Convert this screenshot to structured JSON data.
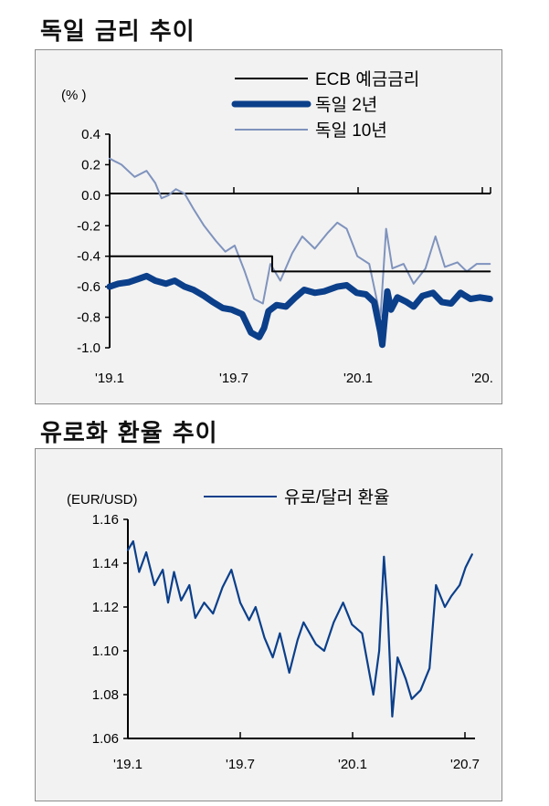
{
  "titles": {
    "bund_title": "독일 금리 추이",
    "fx_title": "유로화 환율 추이"
  },
  "chart_data": [
    {
      "type": "line",
      "title": "독일 금리 추이",
      "ylabel": "(% )",
      "ylim": [
        -1.0,
        0.4
      ],
      "yticks": [
        "0.4",
        "0.2",
        "0.0",
        "-0.2",
        "-0.4",
        "-0.6",
        "-0.8",
        "-1.0"
      ],
      "xticks": [
        "'19.1",
        "'19.7",
        "'20.1",
        "'20."
      ],
      "x_range": [
        "2019-01-01",
        "2020-09-01"
      ],
      "grid": false,
      "legend_position": "top-right",
      "series": [
        {
          "name": "ECB 예금금리",
          "color": "#000000",
          "style": "step",
          "points": [
            [
              "2019-01-01",
              -0.4
            ],
            [
              "2019-09-18",
              -0.4
            ],
            [
              "2019-09-18",
              -0.5
            ],
            [
              "2020-08-31",
              -0.5
            ]
          ]
        },
        {
          "name": "독일 2년",
          "color": "#0b3f8a",
          "style": "thick",
          "points": [
            [
              "2019-01-01",
              -0.6
            ],
            [
              "2019-01-15",
              -0.58
            ],
            [
              "2019-02-01",
              -0.57
            ],
            [
              "2019-02-15",
              -0.55
            ],
            [
              "2019-03-01",
              -0.53
            ],
            [
              "2019-03-15",
              -0.56
            ],
            [
              "2019-04-01",
              -0.58
            ],
            [
              "2019-04-15",
              -0.56
            ],
            [
              "2019-05-01",
              -0.6
            ],
            [
              "2019-05-15",
              -0.62
            ],
            [
              "2019-06-01",
              -0.66
            ],
            [
              "2019-06-15",
              -0.7
            ],
            [
              "2019-07-01",
              -0.74
            ],
            [
              "2019-07-15",
              -0.75
            ],
            [
              "2019-08-01",
              -0.78
            ],
            [
              "2019-08-15",
              -0.9
            ],
            [
              "2019-08-28",
              -0.93
            ],
            [
              "2019-09-05",
              -0.87
            ],
            [
              "2019-09-12",
              -0.76
            ],
            [
              "2019-09-25",
              -0.72
            ],
            [
              "2019-10-10",
              -0.73
            ],
            [
              "2019-10-25",
              -0.67
            ],
            [
              "2019-11-08",
              -0.62
            ],
            [
              "2019-11-25",
              -0.64
            ],
            [
              "2019-12-10",
              -0.63
            ],
            [
              "2019-12-31",
              -0.6
            ],
            [
              "2020-01-15",
              -0.59
            ],
            [
              "2020-01-31",
              -0.64
            ],
            [
              "2020-02-15",
              -0.65
            ],
            [
              "2020-02-28",
              -0.7
            ],
            [
              "2020-03-09",
              -0.9
            ],
            [
              "2020-03-12",
              -0.98
            ],
            [
              "2020-03-16",
              -0.8
            ],
            [
              "2020-03-20",
              -0.63
            ],
            [
              "2020-03-26",
              -0.75
            ],
            [
              "2020-04-05",
              -0.67
            ],
            [
              "2020-04-20",
              -0.7
            ],
            [
              "2020-05-01",
              -0.73
            ],
            [
              "2020-05-15",
              -0.66
            ],
            [
              "2020-06-01",
              -0.64
            ],
            [
              "2020-06-15",
              -0.7
            ],
            [
              "2020-06-30",
              -0.71
            ],
            [
              "2020-07-15",
              -0.64
            ],
            [
              "2020-07-31",
              -0.68
            ],
            [
              "2020-08-15",
              -0.67
            ],
            [
              "2020-08-31",
              -0.68
            ]
          ]
        },
        {
          "name": "독일 10년",
          "color": "#7f93bd",
          "style": "thin",
          "points": [
            [
              "2019-01-01",
              0.24
            ],
            [
              "2019-01-20",
              0.2
            ],
            [
              "2019-02-10",
              0.12
            ],
            [
              "2019-03-01",
              0.16
            ],
            [
              "2019-03-15",
              0.08
            ],
            [
              "2019-03-25",
              -0.02
            ],
            [
              "2019-04-05",
              0.0
            ],
            [
              "2019-04-17",
              0.04
            ],
            [
              "2019-05-01",
              0.01
            ],
            [
              "2019-05-15",
              -0.09
            ],
            [
              "2019-06-01",
              -0.2
            ],
            [
              "2019-06-20",
              -0.3
            ],
            [
              "2019-07-05",
              -0.37
            ],
            [
              "2019-07-20",
              -0.33
            ],
            [
              "2019-08-05",
              -0.5
            ],
            [
              "2019-08-20",
              -0.68
            ],
            [
              "2019-09-03",
              -0.71
            ],
            [
              "2019-09-15",
              -0.45
            ],
            [
              "2019-10-01",
              -0.56
            ],
            [
              "2019-10-20",
              -0.38
            ],
            [
              "2019-11-05",
              -0.27
            ],
            [
              "2019-11-25",
              -0.35
            ],
            [
              "2019-12-15",
              -0.25
            ],
            [
              "2019-12-31",
              -0.18
            ],
            [
              "2020-01-15",
              -0.22
            ],
            [
              "2020-02-01",
              -0.4
            ],
            [
              "2020-02-20",
              -0.45
            ],
            [
              "2020-03-09",
              -0.8
            ],
            [
              "2020-03-18",
              -0.22
            ],
            [
              "2020-03-28",
              -0.48
            ],
            [
              "2020-04-15",
              -0.45
            ],
            [
              "2020-05-01",
              -0.58
            ],
            [
              "2020-05-20",
              -0.48
            ],
            [
              "2020-06-05",
              -0.27
            ],
            [
              "2020-06-20",
              -0.47
            ],
            [
              "2020-07-10",
              -0.44
            ],
            [
              "2020-07-25",
              -0.5
            ],
            [
              "2020-08-10",
              -0.45
            ],
            [
              "2020-08-31",
              -0.45
            ]
          ]
        }
      ]
    },
    {
      "type": "line",
      "title": "유로화 환율 추이",
      "ylabel": "(EUR/USD)",
      "ylim": [
        1.06,
        1.16
      ],
      "yticks": [
        "1.16",
        "1.14",
        "1.12",
        "1.10",
        "1.08",
        "1.06"
      ],
      "xticks": [
        "'19.1",
        "'19.7",
        "'20.1",
        "'20.7"
      ],
      "x_range": [
        "2019-01-01",
        "2020-08-10"
      ],
      "grid": false,
      "legend_position": "top-right",
      "series": [
        {
          "name": "유로/달러 환율",
          "color": "#0b3f8a",
          "points": [
            [
              "2019-01-01",
              1.146
            ],
            [
              "2019-01-10",
              1.15
            ],
            [
              "2019-01-20",
              1.136
            ],
            [
              "2019-02-01",
              1.145
            ],
            [
              "2019-02-15",
              1.13
            ],
            [
              "2019-03-01",
              1.137
            ],
            [
              "2019-03-10",
              1.122
            ],
            [
              "2019-03-20",
              1.136
            ],
            [
              "2019-04-01",
              1.123
            ],
            [
              "2019-04-15",
              1.13
            ],
            [
              "2019-04-25",
              1.115
            ],
            [
              "2019-05-10",
              1.122
            ],
            [
              "2019-05-25",
              1.117
            ],
            [
              "2019-06-10",
              1.129
            ],
            [
              "2019-06-25",
              1.137
            ],
            [
              "2019-07-10",
              1.122
            ],
            [
              "2019-07-25",
              1.114
            ],
            [
              "2019-08-05",
              1.12
            ],
            [
              "2019-08-20",
              1.106
            ],
            [
              "2019-09-03",
              1.097
            ],
            [
              "2019-09-15",
              1.108
            ],
            [
              "2019-10-01",
              1.09
            ],
            [
              "2019-10-15",
              1.105
            ],
            [
              "2019-10-25",
              1.113
            ],
            [
              "2019-11-15",
              1.103
            ],
            [
              "2019-11-29",
              1.1
            ],
            [
              "2019-12-15",
              1.113
            ],
            [
              "2019-12-31",
              1.122
            ],
            [
              "2020-01-15",
              1.112
            ],
            [
              "2020-02-01",
              1.108
            ],
            [
              "2020-02-20",
              1.08
            ],
            [
              "2020-03-01",
              1.1
            ],
            [
              "2020-03-09",
              1.143
            ],
            [
              "2020-03-15",
              1.12
            ],
            [
              "2020-03-23",
              1.07
            ],
            [
              "2020-04-01",
              1.097
            ],
            [
              "2020-04-15",
              1.087
            ],
            [
              "2020-04-25",
              1.078
            ],
            [
              "2020-05-10",
              1.082
            ],
            [
              "2020-05-25",
              1.092
            ],
            [
              "2020-06-05",
              1.13
            ],
            [
              "2020-06-20",
              1.12
            ],
            [
              "2020-07-01",
              1.125
            ],
            [
              "2020-07-15",
              1.13
            ],
            [
              "2020-07-25",
              1.138
            ],
            [
              "2020-08-05",
              1.144
            ]
          ]
        }
      ]
    }
  ]
}
